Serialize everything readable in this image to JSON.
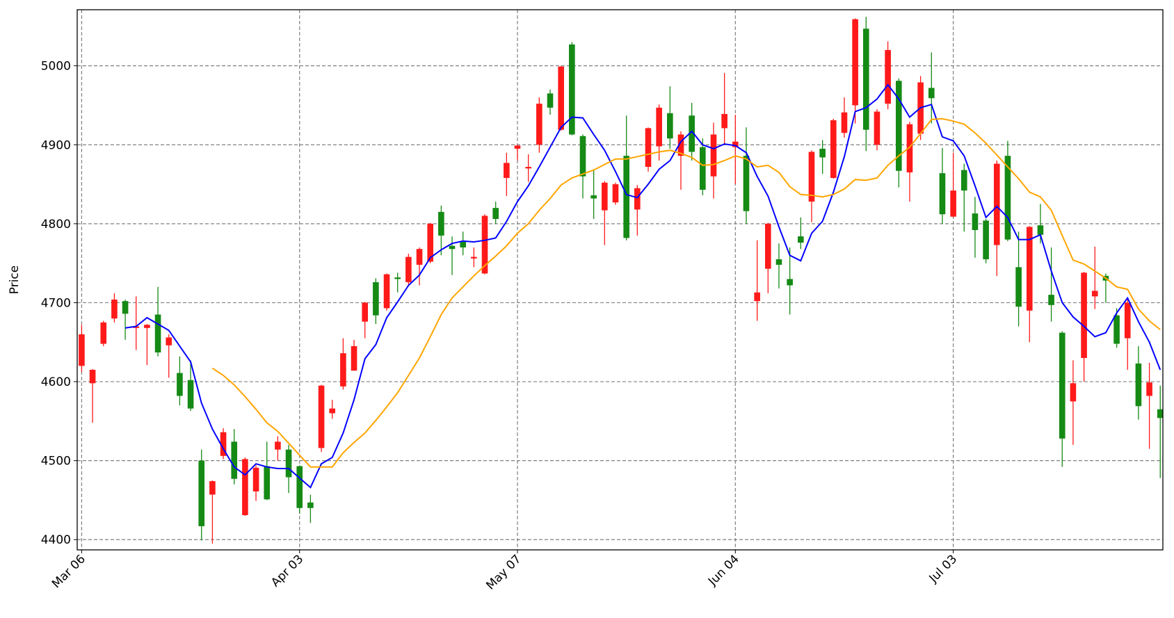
{
  "chart_data": {
    "type": "candlestick",
    "y_label": "Price",
    "categories": [
      "Mar 06",
      null,
      null,
      null,
      null,
      null,
      null,
      null,
      null,
      null,
      null,
      null,
      null,
      null,
      null,
      null,
      null,
      null,
      null,
      null,
      "Apr 03",
      null,
      null,
      null,
      null,
      null,
      null,
      null,
      null,
      null,
      null,
      null,
      null,
      null,
      null,
      null,
      null,
      null,
      null,
      null,
      "May 07",
      null,
      null,
      null,
      null,
      null,
      null,
      null,
      null,
      null,
      null,
      null,
      null,
      null,
      null,
      null,
      null,
      null,
      null,
      null,
      "Jun 04",
      null,
      null,
      null,
      null,
      null,
      null,
      null,
      null,
      null,
      null,
      null,
      null,
      null,
      null,
      null,
      null,
      null,
      null,
      null,
      "Jul 03",
      null,
      null,
      null,
      null,
      null,
      null,
      null,
      null,
      null,
      null,
      null,
      null,
      null,
      null,
      null,
      null,
      null,
      null,
      null
    ],
    "open": [
      4620,
      4598,
      4648,
      4680,
      4702,
      4668,
      4668,
      4685,
      4646,
      4611,
      4602,
      4500,
      4457,
      4506,
      4524,
      4431,
      4461,
      4493,
      4514,
      4514,
      4493,
      4447,
      4516,
      4560,
      4594,
      4614,
      4676,
      4726,
      4693,
      4732,
      4726,
      4748,
      4752,
      4815,
      4772,
      4777,
      4756,
      4737,
      4820,
      4858,
      4895,
      4870,
      4900,
      4965,
      4919,
      5027,
      4911,
      4836,
      4817,
      4827,
      4886,
      4818,
      4872,
      4898,
      4940,
      4886,
      4937,
      4897,
      4860,
      4921,
      4897,
      4886,
      4702,
      4743,
      4755,
      4730,
      4784,
      4828,
      4895,
      4858,
      4915,
      4950,
      5047,
      4900,
      4952,
      4981,
      4865,
      4914,
      4972,
      4864,
      4809,
      4868,
      4813,
      4804,
      4773,
      4886,
      4745,
      4690,
      4798,
      4710,
      4662,
      4575,
      4630,
      4708,
      4734,
      4684,
      4655,
      4623,
      4582,
      4565
    ],
    "high": [
      4672,
      4616,
      4677,
      4712,
      4704,
      4708,
      4673,
      4720,
      4660,
      4632,
      4627,
      4514,
      4475,
      4541,
      4540,
      4504,
      4494,
      4524,
      4531,
      4520,
      4494,
      4457,
      4596,
      4577,
      4655,
      4653,
      4701,
      4731,
      4737,
      4738,
      4762,
      4770,
      4801,
      4823,
      4784,
      4790,
      4770,
      4812,
      4828,
      4890,
      4900,
      4888,
      4960,
      4970,
      5000,
      5030,
      4913,
      4868,
      4854,
      4852,
      4937,
      4849,
      4922,
      4951,
      4974,
      4917,
      4953,
      4908,
      4928,
      4991,
      4938,
      4922,
      4779,
      4801,
      4775,
      4770,
      4808,
      4893,
      4906,
      4933,
      4960,
      5060,
      5062,
      4945,
      5031,
      4984,
      4929,
      4987,
      5017,
      4896,
      4890,
      4876,
      4834,
      4806,
      4880,
      4905,
      4790,
      4797,
      4825,
      4770,
      4664,
      4627,
      4739,
      4771,
      4737,
      4693,
      4705,
      4645,
      4624,
      4595
    ],
    "low": [
      4612,
      4548,
      4645,
      4675,
      4653,
      4640,
      4621,
      4632,
      4605,
      4570,
      4563,
      4399,
      4395,
      4502,
      4470,
      4430,
      4449,
      4450,
      4500,
      4459,
      4433,
      4421,
      4511,
      4553,
      4590,
      4614,
      4655,
      4673,
      4690,
      4713,
      4722,
      4722,
      4750,
      4760,
      4735,
      4760,
      4745,
      4736,
      4800,
      4835,
      4880,
      4853,
      4890,
      4938,
      4918,
      4912,
      4832,
      4806,
      4773,
      4824,
      4779,
      4785,
      4866,
      4880,
      4895,
      4843,
      4880,
      4836,
      4832,
      4900,
      4850,
      4800,
      4677,
      4712,
      4718,
      4685,
      4768,
      4802,
      4863,
      4857,
      4909,
      4927,
      4892,
      4893,
      4945,
      4846,
      4828,
      4906,
      4927,
      4800,
      4808,
      4790,
      4757,
      4750,
      4734,
      4778,
      4670,
      4650,
      4775,
      4676,
      4492,
      4520,
      4600,
      4692,
      4700,
      4643,
      4615,
      4552,
      4515,
      4478
    ],
    "close": [
      4660,
      4615,
      4675,
      4704,
      4686,
      4670,
      4672,
      4637,
      4656,
      4582,
      4566,
      4417,
      4474,
      4536,
      4477,
      4502,
      4491,
      4451,
      4524,
      4479,
      4440,
      4440,
      4595,
      4566,
      4636,
      4645,
      4700,
      4684,
      4736,
      4730,
      4758,
      4768,
      4800,
      4785,
      4768,
      4770,
      4758,
      4810,
      4806,
      4877,
      4899,
      4872,
      4952,
      4947,
      4999,
      4913,
      4860,
      4832,
      4852,
      4850,
      4782,
      4845,
      4921,
      4947,
      4908,
      4913,
      4891,
      4843,
      4913,
      4939,
      4904,
      4816,
      4713,
      4800,
      4748,
      4722,
      4776,
      4891,
      4884,
      4931,
      4941,
      5059,
      4919,
      4942,
      5020,
      4867,
      4926,
      4979,
      4959,
      4812,
      4842,
      4842,
      4792,
      4755,
      4876,
      4780,
      4695,
      4796,
      4786,
      4697,
      4528,
      4598,
      4738,
      4715,
      4728,
      4648,
      4700,
      4569,
      4599,
      4554
    ],
    "up_color": "#ff1a1a",
    "down_color": "#158a15",
    "lines": [
      {
        "color": "#0000ff",
        "values": [
          null,
          null,
          null,
          null,
          4668,
          4670,
          4681,
          4673,
          4665,
          4645,
          4625,
          4573,
          4540,
          4515,
          4492,
          4482,
          4496,
          4492,
          4490,
          4490,
          4478,
          4466,
          4496,
          4504,
          4535,
          4577,
          4629,
          4647,
          4681,
          4701,
          4722,
          4735,
          4757,
          4767,
          4775,
          4778,
          4777,
          4779,
          4782,
          4803,
          4828,
          4848,
          4872,
          4897,
          4922,
          4935,
          4934,
          4913,
          4893,
          4866,
          4837,
          4833,
          4850,
          4869,
          4880,
          4904,
          4917,
          4900,
          4895,
          4901,
          4899,
          4890,
          4860,
          4835,
          4796,
          4760,
          4753,
          4788,
          4803,
          4840,
          4885,
          4942,
          4947,
          4958,
          4976,
          4958,
          4935,
          4947,
          4951,
          4910,
          4905,
          4886,
          4848,
          4808,
          4822,
          4808,
          4780,
          4780,
          4786,
          4740,
          4700,
          4682,
          4670,
          4657,
          4662,
          4687,
          4706,
          4676,
          4650,
          4615
        ]
      },
      {
        "color": "#ffa500",
        "values": [
          null,
          null,
          null,
          null,
          null,
          null,
          null,
          null,
          null,
          null,
          null,
          null,
          4617,
          4608,
          4596,
          4581,
          4565,
          4548,
          4537,
          4522,
          4507,
          4492,
          4492,
          4492,
          4510,
          4523,
          4535,
          4551,
          4568,
          4586,
          4608,
          4630,
          4657,
          4685,
          4706,
          4720,
          4734,
          4747,
          4759,
          4772,
          4788,
          4800,
          4817,
          4832,
          4849,
          4858,
          4863,
          4868,
          4875,
          4882,
          4882,
          4885,
          4888,
          4891,
          4893,
          4889,
          4884,
          4874,
          4875,
          4880,
          4886,
          4882,
          4872,
          4874,
          4865,
          4847,
          4837,
          4836,
          4834,
          4837,
          4844,
          4856,
          4855,
          4858,
          4874,
          4886,
          4897,
          4914,
          4932,
          4933,
          4930,
          4926,
          4915,
          4902,
          4887,
          4872,
          4857,
          4840,
          4834,
          4817,
          4785,
          4754,
          4749,
          4740,
          4731,
          4720,
          4717,
          4692,
          4677,
          4666
        ]
      }
    ],
    "ylim": [
      4387,
      5071
    ],
    "yticks": [
      4400,
      4500,
      4600,
      4700,
      4800,
      4900,
      5000
    ],
    "grid": true
  }
}
